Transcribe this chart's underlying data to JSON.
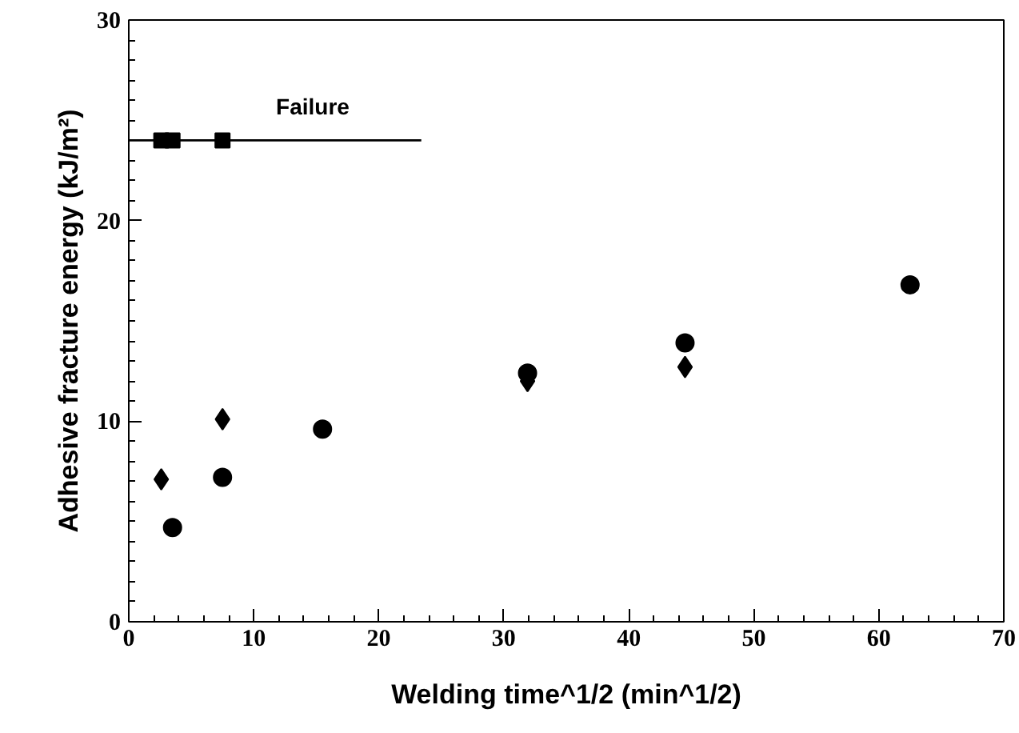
{
  "chart_data": {
    "type": "scatter",
    "xlabel": "Welding time^1/2 (min^1/2)",
    "ylabel": "Adhesive fracture energy (kJ/m²)",
    "xlim": [
      0,
      70
    ],
    "ylim": [
      0,
      30
    ],
    "xticks": [
      0,
      10,
      20,
      30,
      40,
      50,
      60,
      70
    ],
    "yticks": [
      0,
      10,
      20,
      30
    ],
    "grid": false,
    "series": [
      {
        "marker": "circle",
        "color": "#000000",
        "x": [
          3.5,
          7.5,
          15.5,
          31.9,
          44.5,
          62.5
        ],
        "values": [
          4.7,
          7.2,
          9.6,
          12.4,
          13.9,
          16.8
        ]
      },
      {
        "marker": "diamond",
        "color": "#000000",
        "x": [
          2.6,
          7.5,
          31.9,
          44.5
        ],
        "values": [
          7.1,
          10.1,
          12.0,
          12.7
        ]
      },
      {
        "marker": "square",
        "color": "#000000",
        "x": [
          2.6,
          3.5,
          7.5
        ],
        "values": [
          24,
          24,
          24
        ]
      },
      {
        "type": "line",
        "color": "#000000",
        "x": [
          0,
          23.4
        ],
        "values": [
          24,
          24
        ]
      }
    ],
    "annotations": [
      "Failure"
    ]
  }
}
